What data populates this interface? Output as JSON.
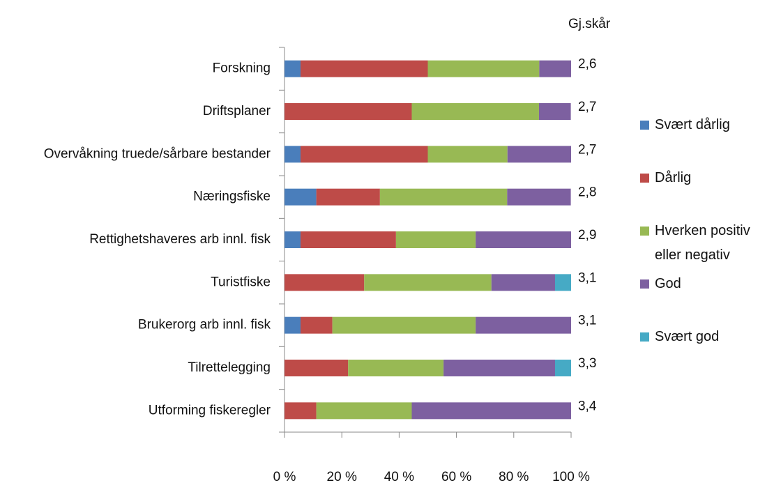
{
  "chart_data": {
    "type": "stacked_barh",
    "categories": [
      "Forskning",
      "Driftsplaner",
      "Overvåkning truede/sårbare bestander",
      "Næringsfiske",
      "Rettighetshaveres arb innl. fisk",
      "Turistfiske",
      "Brukerorg arb innl. fisk",
      "Tilrettelegging",
      "Utforming fiskeregler"
    ],
    "series": [
      {
        "name": "Svært dårlig",
        "color": "#4a7ebb",
        "values": [
          5.6,
          0,
          5.6,
          11.1,
          5.6,
          0,
          5.6,
          0,
          0
        ]
      },
      {
        "name": "Dårlig",
        "color": "#be4b48",
        "values": [
          44.4,
          44.4,
          44.4,
          22.2,
          33.3,
          27.8,
          11.1,
          22.2,
          11.1
        ]
      },
      {
        "name": "Hverken positiv eller negativ",
        "color": "#98b954",
        "values": [
          38.9,
          44.4,
          27.8,
          44.4,
          27.8,
          44.4,
          50,
          33.3,
          33.3
        ]
      },
      {
        "name": "God",
        "color": "#7d60a0",
        "values": [
          11.1,
          11.1,
          22.2,
          22.2,
          33.3,
          22.2,
          33.3,
          38.9,
          55.6
        ]
      },
      {
        "name": "Svært god",
        "color": "#46aac5",
        "values": [
          0,
          0,
          0,
          0,
          0,
          5.6,
          0,
          5.6,
          0
        ]
      }
    ],
    "score_header": "Gj.skår",
    "scores": [
      "2,6",
      "2,7",
      "2,7",
      "2,8",
      "2,9",
      "3,1",
      "3,1",
      "3,3",
      "3,4"
    ],
    "xlim": [
      0,
      100
    ],
    "xticks": [
      {
        "value": 0,
        "label": "0 %"
      },
      {
        "value": 20,
        "label": "20 %"
      },
      {
        "value": 40,
        "label": "40 %"
      },
      {
        "value": 60,
        "label": "60 %"
      },
      {
        "value": 80,
        "label": "80 %"
      },
      {
        "value": 100,
        "label": "100 %"
      }
    ],
    "legend": "right"
  }
}
